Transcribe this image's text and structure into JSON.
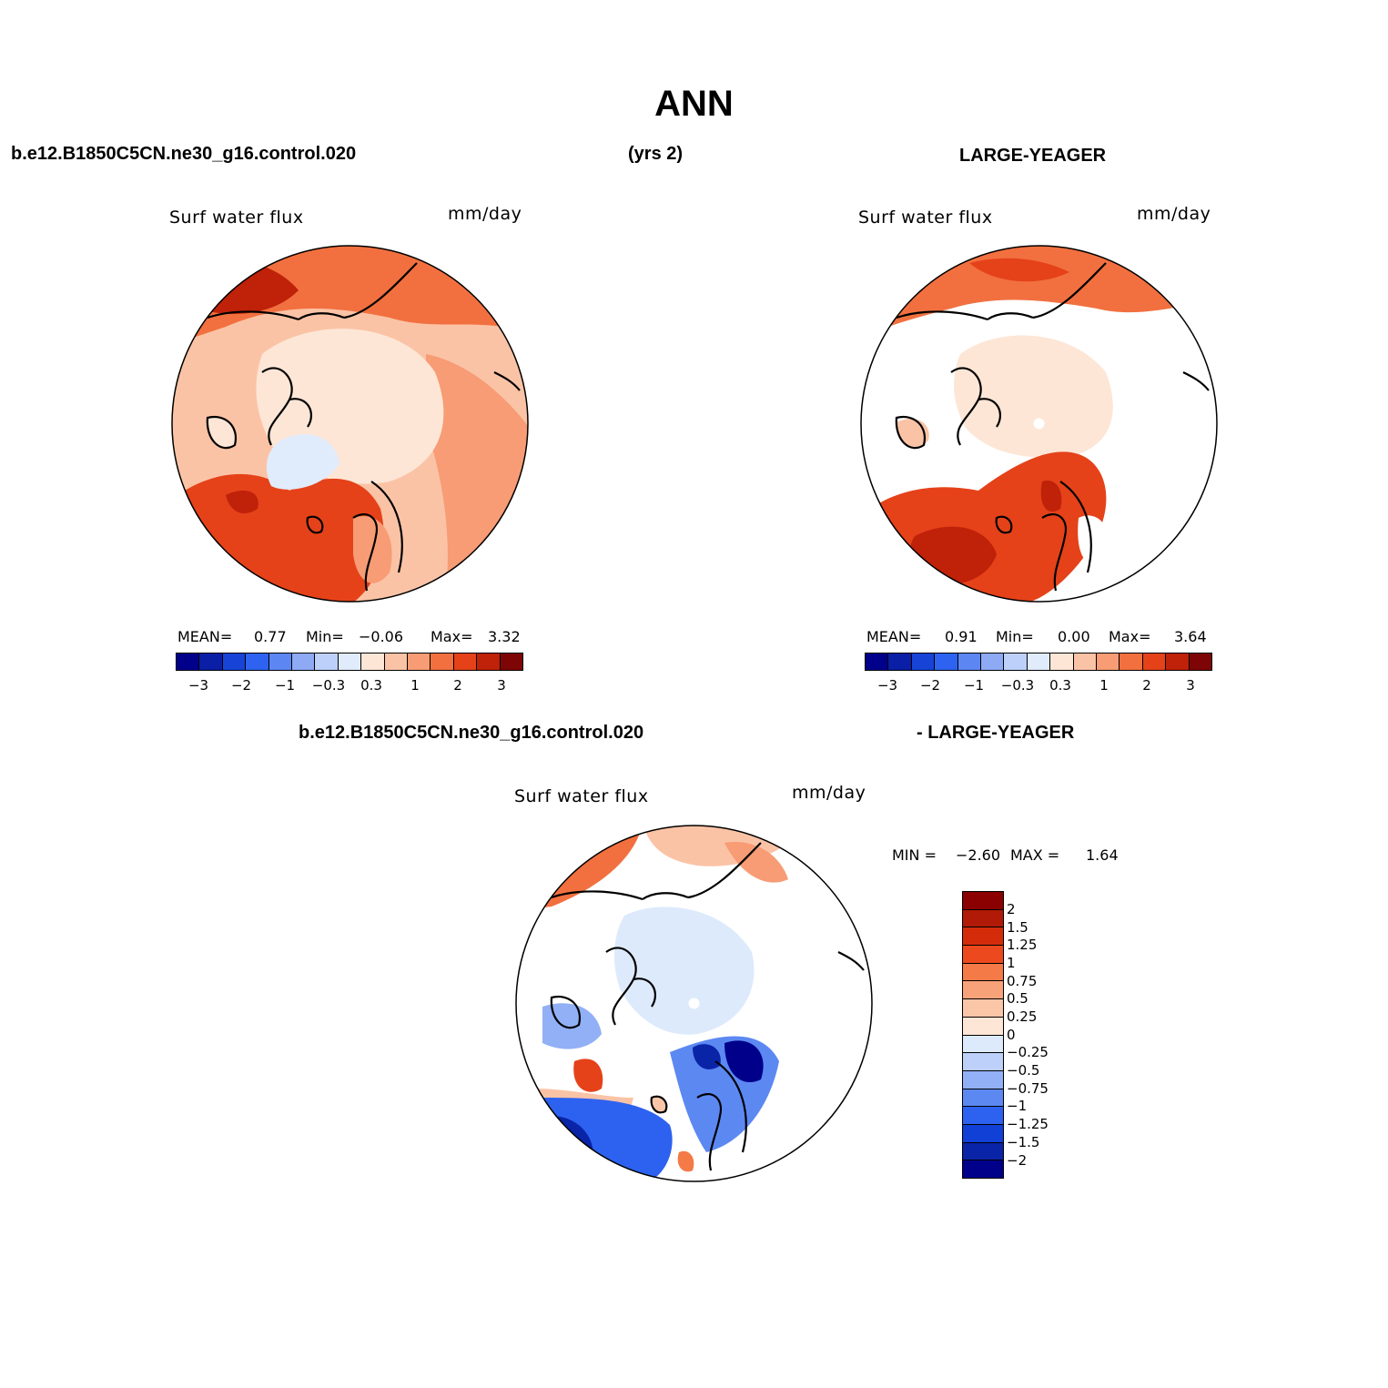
{
  "title": "ANN",
  "header": {
    "case_name": "b.e12.B1850C5CN.ne30_g16.control.020",
    "years": "(yrs 2)",
    "obs_name": "LARGE-YEAGER"
  },
  "panel1": {
    "variable": "Surf water flux",
    "units": "mm/day",
    "mean_label": "MEAN=",
    "mean": "0.77",
    "min_label": "Min=",
    "min": "−0.06",
    "max_label": "Max=",
    "max": "3.32"
  },
  "panel2": {
    "variable": "Surf water flux",
    "units": "mm/day",
    "mean_label": "MEAN=",
    "mean": "0.91",
    "min_label": "Min=",
    "min": "0.00",
    "max_label": "Max=",
    "max": "3.64"
  },
  "diff": {
    "case_name": "b.e12.B1850C5CN.ne30_g16.control.020",
    "obs_name": "- LARGE-YEAGER",
    "variable": "Surf water flux",
    "units": "mm/day",
    "min_label": "MIN =",
    "min": "−2.60",
    "max_label": "MAX =",
    "max": "1.64"
  },
  "colorbar_top": {
    "colors": [
      "#00008b",
      "#0a1fa6",
      "#1743d6",
      "#2e62f0",
      "#5c86f2",
      "#8eaaf5",
      "#bcd0fa",
      "#e0ecfc",
      "#fde6d6",
      "#fbc3a6",
      "#f79c75",
      "#f2703f",
      "#e5421a",
      "#bf2109",
      "#7e0505"
    ],
    "ticks": [
      "−3",
      "−2",
      "−1",
      "−0.3",
      "0.3",
      "1",
      "2",
      "3"
    ]
  },
  "colorbar_diff": {
    "colors": [
      "#8b0000",
      "#b01a06",
      "#d42c0a",
      "#ec4a1e",
      "#f47a48",
      "#f8a27a",
      "#fbc6a8",
      "#fde6d6",
      "#ddeafc",
      "#bcd0fa",
      "#92b0f6",
      "#5c88f2",
      "#2d62f0",
      "#1140d6",
      "#0a24a8",
      "#00008b"
    ],
    "ticks": [
      "2",
      "1.5",
      "1.25",
      "1",
      "0.75",
      "0.5",
      "0.25",
      "0",
      "−0.25",
      "−0.5",
      "−0.75",
      "−1",
      "−1.25",
      "−1.5",
      "−2"
    ]
  }
}
